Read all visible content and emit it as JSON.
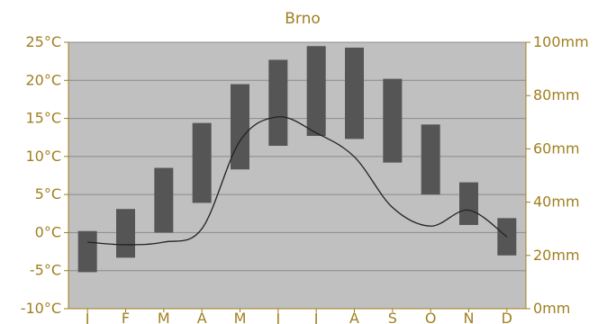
{
  "chart_data": {
    "type": "bar",
    "title": "Brno",
    "categories": [
      "J",
      "F",
      "M",
      "A",
      "M",
      "J",
      "J",
      "A",
      "S",
      "O",
      "N",
      "D"
    ],
    "temperature_range": {
      "unit": "°C",
      "axis": "left",
      "ylim": [
        -10,
        25
      ],
      "ticks": [
        "-10°C",
        "-5°C",
        "0°C",
        "5°C",
        "10°C",
        "15°C",
        "20°C",
        "25°C"
      ],
      "low": [
        -5.2,
        -3.3,
        0.0,
        3.9,
        8.3,
        11.4,
        12.7,
        12.3,
        9.2,
        5.0,
        1.0,
        -3.0
      ],
      "high": [
        0.2,
        3.1,
        8.5,
        14.4,
        19.5,
        22.7,
        24.5,
        24.3,
        20.2,
        14.2,
        6.6,
        1.9
      ]
    },
    "precipitation": {
      "unit": "mm",
      "axis": "right",
      "ylim": [
        0,
        100
      ],
      "ticks": [
        "0mm",
        "20mm",
        "40mm",
        "60mm",
        "80mm",
        "100mm"
      ],
      "values": [
        25,
        24,
        25,
        30,
        63,
        72,
        66,
        57,
        38,
        31,
        37,
        27
      ]
    },
    "grid": true,
    "legend": "none",
    "colors": {
      "bars": "#555555",
      "line": "#222222",
      "plot_background": "#c0c0c0",
      "gridlines": "#8a8a8a",
      "labels": "#a07f1f"
    }
  }
}
